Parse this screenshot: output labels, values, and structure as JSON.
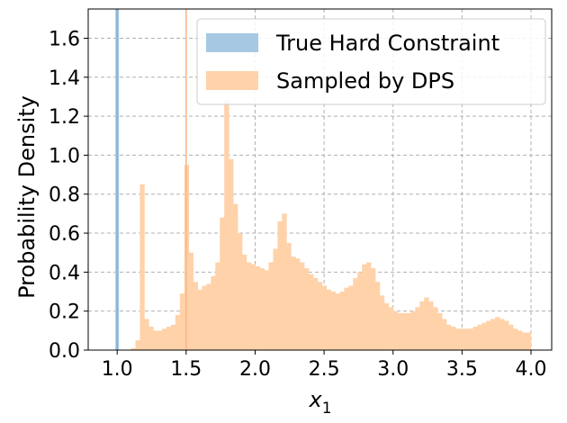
{
  "chart_data": {
    "type": "bar",
    "xlabel_main": "x",
    "xlabel_sub": "1",
    "ylabel": "Probability Density",
    "xlim": [
      0.79,
      4.15
    ],
    "ylim": [
      0,
      1.75
    ],
    "xticks": [
      1.0,
      1.5,
      2.0,
      2.5,
      3.0,
      3.5,
      4.0
    ],
    "yticks": [
      0.0,
      0.2,
      0.4,
      0.6,
      0.8,
      1.0,
      1.2,
      1.4,
      1.6
    ],
    "grid": true,
    "legend_position": "top-right",
    "series": [
      {
        "name": "True Hard Constraint",
        "color": "#a6c8e3",
        "line_color": "#86b2d6",
        "type": "spike",
        "x": 1.0,
        "y": 1.75
      },
      {
        "name": "Sampled by DPS",
        "color": "#ffd2aa",
        "line_color": "#f9b88a",
        "type": "histogram",
        "bin_start": 1.1,
        "bin_width": 0.0322,
        "values": [
          0.01,
          0.05,
          0.85,
          0.16,
          0.12,
          0.1,
          0.1,
          0.11,
          0.12,
          0.13,
          0.18,
          0.29,
          0.95,
          0.5,
          0.35,
          0.31,
          0.33,
          0.34,
          0.38,
          0.45,
          0.68,
          1.28,
          0.98,
          0.75,
          0.6,
          0.49,
          0.45,
          0.44,
          0.43,
          0.42,
          0.41,
          0.45,
          0.52,
          0.66,
          0.7,
          0.55,
          0.48,
          0.47,
          0.45,
          0.42,
          0.39,
          0.37,
          0.35,
          0.33,
          0.31,
          0.3,
          0.29,
          0.3,
          0.32,
          0.33,
          0.37,
          0.4,
          0.44,
          0.45,
          0.42,
          0.35,
          0.28,
          0.24,
          0.22,
          0.2,
          0.19,
          0.19,
          0.19,
          0.2,
          0.22,
          0.25,
          0.27,
          0.25,
          0.22,
          0.19,
          0.16,
          0.13,
          0.12,
          0.11,
          0.11,
          0.11,
          0.11,
          0.12,
          0.13,
          0.14,
          0.15,
          0.16,
          0.17,
          0.16,
          0.15,
          0.13,
          0.11,
          0.1,
          0.09,
          0.09
        ]
      }
    ],
    "reference_lines": [
      {
        "x": 1.0,
        "color": "#86b2d6"
      },
      {
        "x": 1.5,
        "color": "#f9b88a"
      }
    ]
  }
}
